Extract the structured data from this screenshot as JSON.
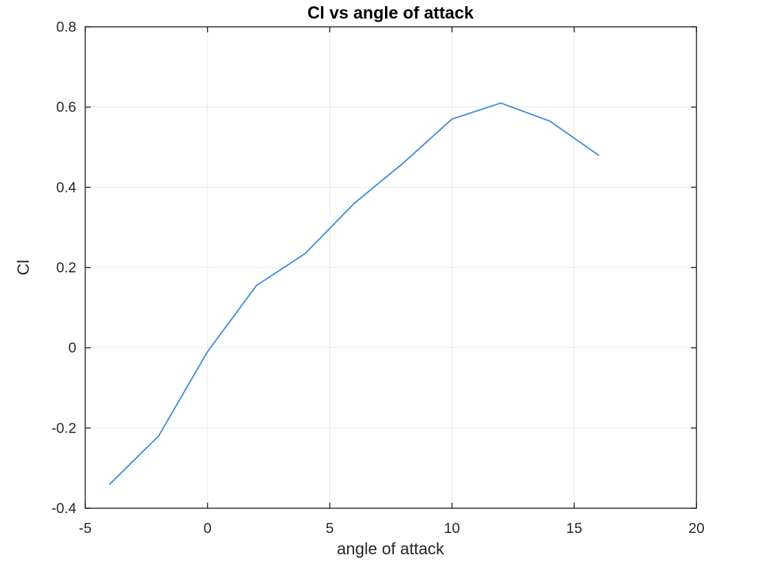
{
  "chart_data": {
    "type": "line",
    "title": "Cl vs angle of attack",
    "xlabel": "angle of attack",
    "ylabel": "Cl",
    "x": [
      -4,
      -2,
      0,
      2,
      4,
      6,
      8,
      10,
      12,
      14,
      16
    ],
    "y": [
      -0.34,
      -0.22,
      -0.01,
      0.155,
      0.235,
      0.36,
      0.46,
      0.57,
      0.61,
      0.565,
      0.48
    ],
    "xlim": [
      -5,
      20
    ],
    "ylim": [
      -0.4,
      0.8
    ],
    "x_ticks": [
      -5,
      0,
      5,
      10,
      15,
      20
    ],
    "y_ticks": [
      -0.4,
      -0.2,
      0,
      0.2,
      0.4,
      0.6,
      0.8
    ],
    "grid": true,
    "legend": false,
    "line_color": "#3e8ede",
    "axis_color": "#262626",
    "grid_color": "#e8e8e8",
    "background_color": "#ffffff"
  }
}
